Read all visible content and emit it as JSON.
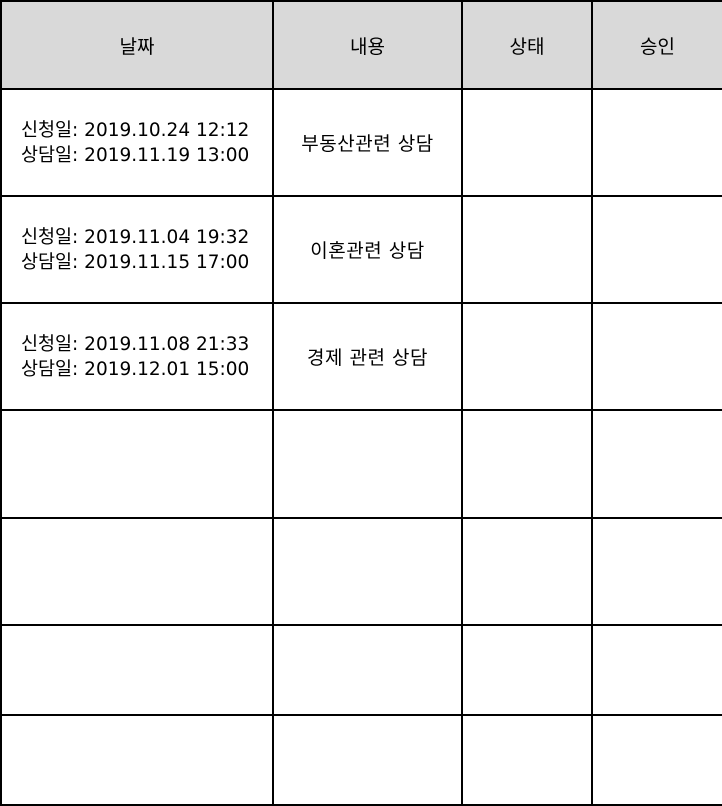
{
  "table": {
    "headers": {
      "date": "날짜",
      "content": "내용",
      "status": "상태",
      "approval": "승인"
    },
    "rows": [
      {
        "applied": "신청일: 2019.10.24 12:12",
        "consult": "상담일: 2019.11.19 13:00",
        "content": "부동산관련 상담",
        "status": "",
        "approval": ""
      },
      {
        "applied": "신청일: 2019.11.04 19:32",
        "consult": "상담일: 2019.11.15 17:00",
        "content": "이혼관련 상담",
        "status": "",
        "approval": ""
      },
      {
        "applied": "신청일: 2019.11.08 21:33",
        "consult": "상담일: 2019.12.01 15:00",
        "content": "경제 관련 상담",
        "status": "",
        "approval": ""
      },
      {
        "applied": "",
        "consult": "",
        "content": "",
        "status": "",
        "approval": ""
      },
      {
        "applied": "",
        "consult": "",
        "content": "",
        "status": "",
        "approval": ""
      },
      {
        "applied": "",
        "consult": "",
        "content": "",
        "status": "",
        "approval": ""
      },
      {
        "applied": "",
        "consult": "",
        "content": "",
        "status": "",
        "approval": ""
      }
    ]
  },
  "colors": {
    "header_bg": "#d9d9d9",
    "border": "#000000",
    "cell_bg": "#ffffff"
  }
}
